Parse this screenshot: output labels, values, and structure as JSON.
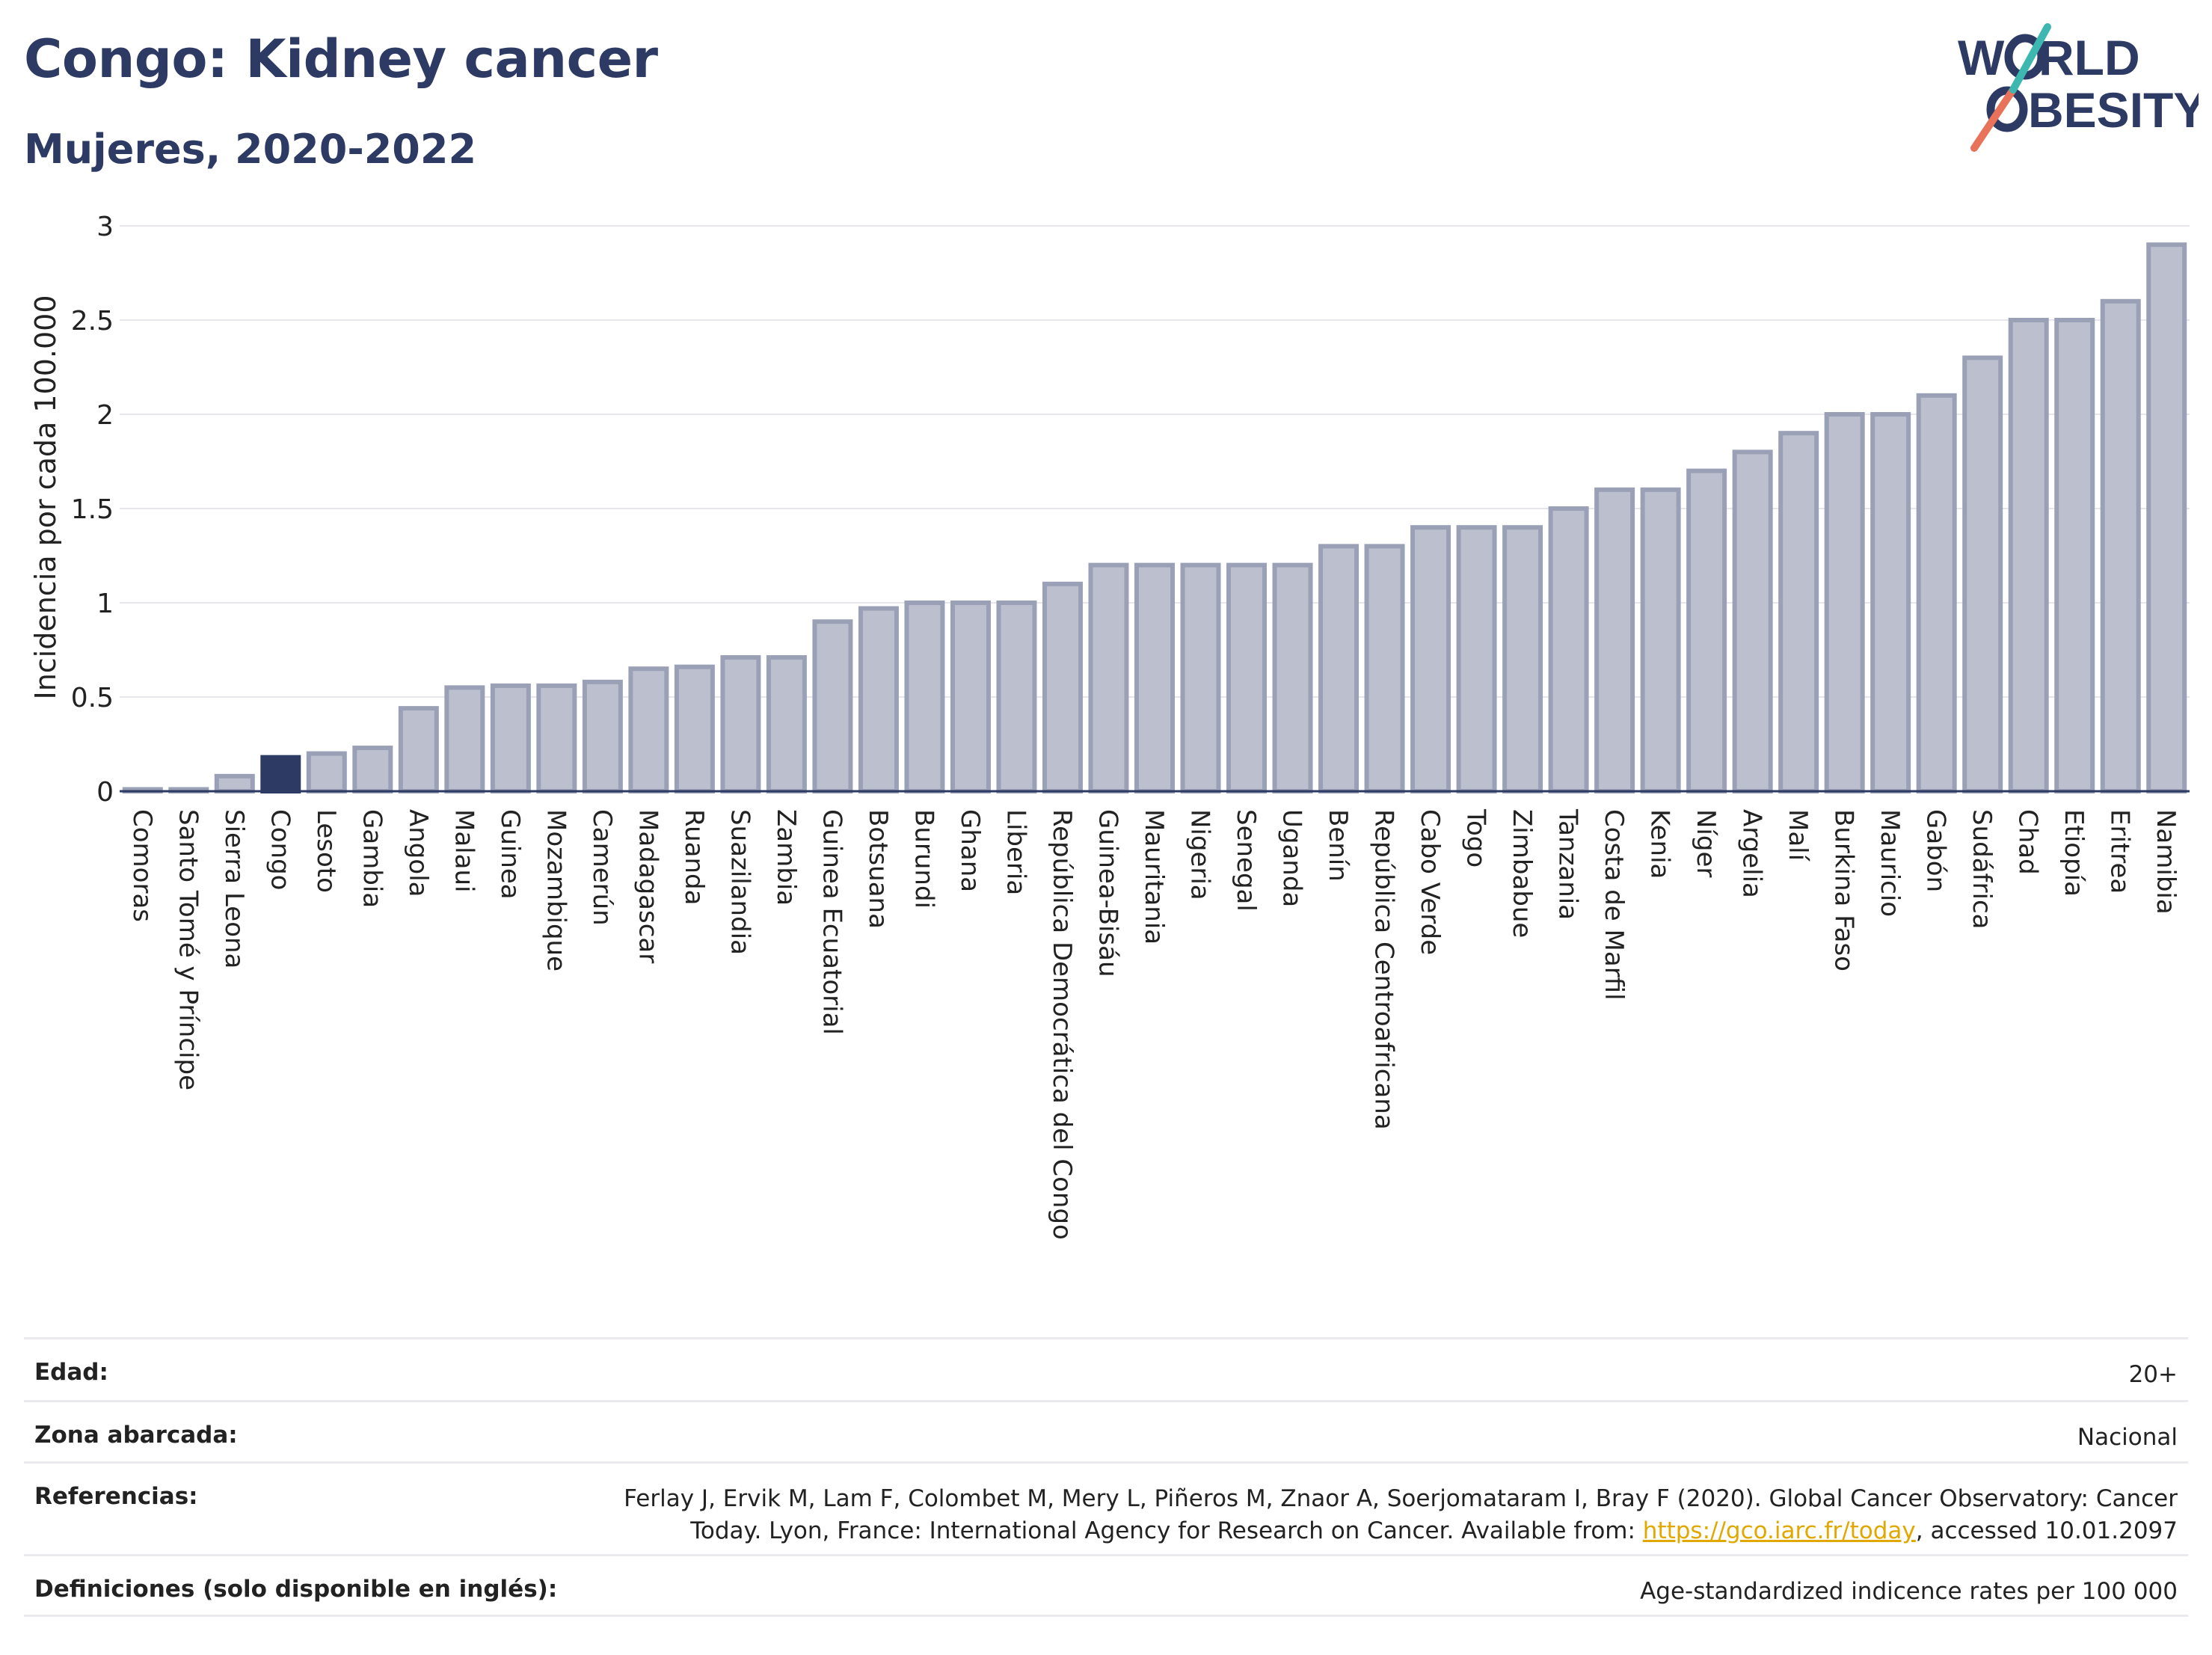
{
  "header": {
    "title": "Congo: Kidney cancer",
    "subtitle": "Mujeres, 2020-2022"
  },
  "logo": {
    "line1": "W",
    "line1_rest": "RLD",
    "line2": "BESITY"
  },
  "colors": {
    "bar_fill": "#bcc0ce",
    "bar_stroke": "#9aa0b6",
    "highlight": "#2d3a63",
    "title": "#2d3a63",
    "logo_teal": "#3cb8b0",
    "logo_coral": "#e8735a"
  },
  "chart_data": {
    "type": "bar",
    "ylabel": "Incidencia por cada 100.000",
    "ylim": [
      0,
      3
    ],
    "yticks": [
      "0",
      "0.5",
      "1",
      "1.5",
      "2",
      "2.5",
      "3"
    ],
    "highlight": "Congo",
    "categories": [
      "Comoras",
      "Santo Tomé y Príncipe",
      "Sierra Leona",
      "Congo",
      "Lesoto",
      "Gambia",
      "Angola",
      "Malaui",
      "Guinea",
      "Mozambique",
      "Camerún",
      "Madagascar",
      "Ruanda",
      "Suazilandia",
      "Zambia",
      "Guinea Ecuatorial",
      "Botsuana",
      "Burundi",
      "Ghana",
      "Liberia",
      "República Democrática del Congo",
      "Guinea-Bisáu",
      "Mauritania",
      "Nigeria",
      "Senegal",
      "Uganda",
      "Benín",
      "República Centroafricana",
      "Cabo Verde",
      "Togo",
      "Zimbabue",
      "Tanzania",
      "Costa de Marfil",
      "Kenia",
      "Níger",
      "Argelia",
      "Malí",
      "Burkina Faso",
      "Mauricio",
      "Gabón",
      "Sudáfrica",
      "Chad",
      "Etiopía",
      "Eritrea",
      "Namibia"
    ],
    "values": [
      0.01,
      0.01,
      0.08,
      0.18,
      0.2,
      0.23,
      0.44,
      0.55,
      0.56,
      0.56,
      0.58,
      0.65,
      0.66,
      0.71,
      0.71,
      0.9,
      0.97,
      1.0,
      1.0,
      1.0,
      1.1,
      1.2,
      1.2,
      1.2,
      1.2,
      1.2,
      1.3,
      1.3,
      1.4,
      1.4,
      1.4,
      1.5,
      1.6,
      1.6,
      1.7,
      1.8,
      1.9,
      2.0,
      2.0,
      2.1,
      2.3,
      2.5,
      2.5,
      2.6,
      2.9
    ],
    "grid": true
  },
  "meta": {
    "age_label": "Edad:",
    "age_value": "20+",
    "area_label": "Zona abarcada:",
    "area_value": "Nacional",
    "refs_label": "Referencias:",
    "refs_line1": "Ferlay J, Ervik M, Lam F, Colombet M, Mery L, Piñeros M, Znaor A, Soerjomataram I, Bray F (2020). Global Cancer Observatory: Cancer",
    "refs_line2_pre": "Today. Lyon, France: International Agency for Research on Cancer. Available from: ",
    "refs_link": "https://gco.iarc.fr/today",
    "refs_line2_post": ", accessed 10.01.2097",
    "defs_label": "Definiciones (solo disponible en inglés):",
    "defs_value": "Age-standardized indicence rates per 100 000"
  }
}
